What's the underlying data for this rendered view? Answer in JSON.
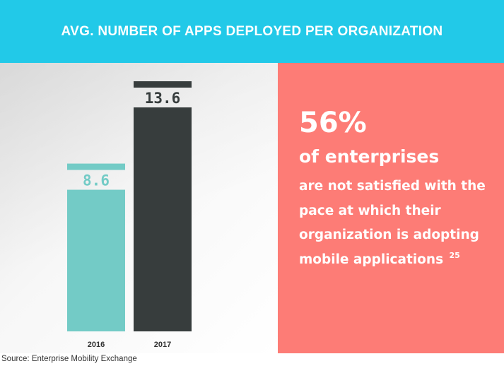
{
  "header": {
    "title": "AVG. NUMBER OF APPS DEPLOYED PER ORGANIZATION"
  },
  "chart_data": {
    "type": "bar",
    "title": "AVG. NUMBER OF APPS DEPLOYED PER ORGANIZATION",
    "categories": [
      "2016",
      "2017"
    ],
    "values": [
      8.6,
      13.6
    ],
    "value_labels": [
      "8.6",
      "13.6"
    ],
    "colors": [
      "#73cbc6",
      "#373d3d"
    ],
    "xlabel": "",
    "ylabel": "",
    "ylim": [
      0,
      13.6
    ],
    "grid": false,
    "legend": "none"
  },
  "stat": {
    "big": "56%",
    "sub": "of enterprises",
    "lines": [
      "are not satisfied with the",
      "pace at which their",
      "organization is adopting",
      "mobile applications"
    ],
    "ref": "25"
  },
  "footer": {
    "source": "Source: Enterprise Mobility Exchange"
  },
  "colors": {
    "header": "#22c9e8",
    "stat_panel": "#fd7c76"
  }
}
